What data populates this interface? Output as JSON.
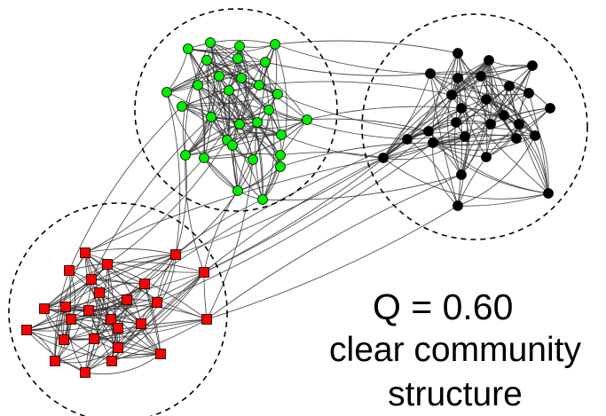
{
  "diagram": {
    "caption": {
      "modularity": "Q = 0.60",
      "line1": "clear community",
      "line2": "structure"
    },
    "colors": {
      "community_green": "#00ee00",
      "community_black": "#000000",
      "community_red": "#ff0000",
      "edge": "#333333",
      "boundary": "#000000"
    },
    "node_shapes": {
      "green": "circle",
      "black": "circle",
      "red": "square"
    },
    "node_counts": {
      "green": 30,
      "black": 27,
      "red": 26
    }
  }
}
